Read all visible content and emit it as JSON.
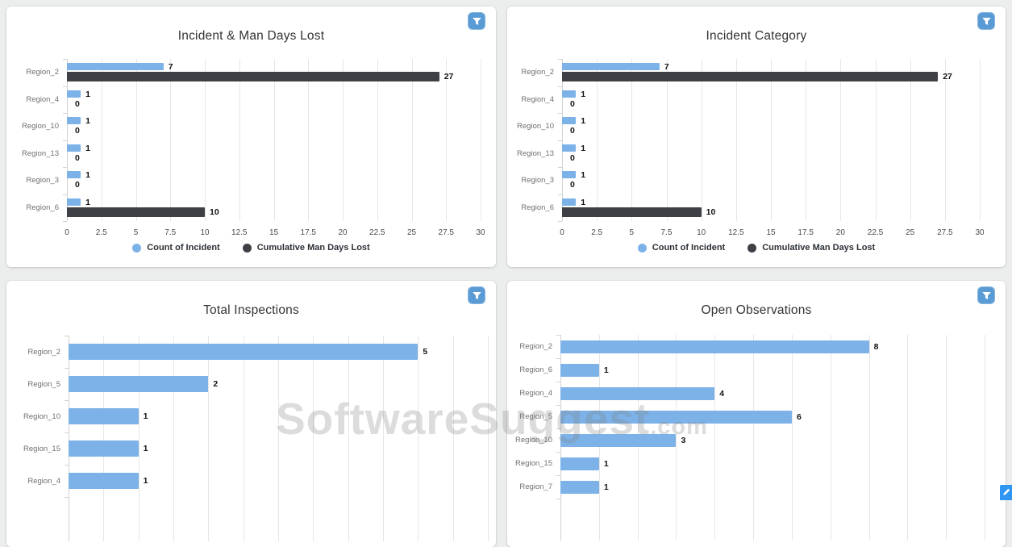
{
  "watermark": {
    "text": "SoftwareSuggest",
    "suffix": ".com"
  },
  "colors": {
    "page_background": "#eceded",
    "panel_background": "#ffffff",
    "bar_blue": "#7db2e8",
    "bar_dark": "#3e4045",
    "filter_button": "#5b9bd5",
    "edit_button": "#2f96f3",
    "gridline": "#e6e6e6"
  },
  "chart_data": [
    {
      "type": "bar",
      "orientation": "horizontal",
      "title": "Incident & Man Days Lost",
      "categories": [
        "Region_2",
        "Region_4",
        "Region_10",
        "Region_13",
        "Region_3",
        "Region_6"
      ],
      "series": [
        {
          "name": "Count of Incident",
          "color": "#7db2e8",
          "values": [
            7,
            1,
            1,
            1,
            1,
            1
          ]
        },
        {
          "name": "Cumulative Man Days Lost",
          "color": "#3e4045",
          "values": [
            27,
            0,
            0,
            0,
            0,
            10
          ]
        }
      ],
      "x_ticks": [
        "0",
        "2.5",
        "5",
        "7.5",
        "10",
        "12.5",
        "15",
        "17.5",
        "20",
        "22.5",
        "25",
        "27.5",
        "30"
      ],
      "xmax": 30,
      "grid_step": 2.5,
      "grid": true,
      "legend_position": "bottom"
    },
    {
      "type": "bar",
      "orientation": "horizontal",
      "title": "Incident Category",
      "categories": [
        "Region_2",
        "Region_4",
        "Region_10",
        "Region_13",
        "Region_3",
        "Region_6"
      ],
      "series": [
        {
          "name": "Count of Incident",
          "color": "#7db2e8",
          "values": [
            7,
            1,
            1,
            1,
            1,
            1
          ]
        },
        {
          "name": "Cumulative Man Days Lost",
          "color": "#3e4045",
          "values": [
            27,
            0,
            0,
            0,
            0,
            10
          ]
        }
      ],
      "x_ticks": [
        "0",
        "2.5",
        "5",
        "7.5",
        "10",
        "12.5",
        "15",
        "17.5",
        "20",
        "22.5",
        "25",
        "27.5",
        "30"
      ],
      "xmax": 30,
      "grid_step": 2.5,
      "grid": true,
      "legend_position": "bottom"
    },
    {
      "type": "bar",
      "orientation": "horizontal",
      "title": "Total Inspections",
      "categories": [
        "Region_2",
        "Region_5",
        "Region_10",
        "Region_15",
        "Region_4"
      ],
      "series": [
        {
          "name": "Total Inspections",
          "color": "#7db2e8",
          "values": [
            5,
            2,
            1,
            1,
            1
          ]
        }
      ],
      "x_ticks": [],
      "xmax": 6,
      "grid_step": 0.5,
      "grid": true,
      "legend_position": "none"
    },
    {
      "type": "bar",
      "orientation": "horizontal",
      "title": "Open Observations",
      "categories": [
        "Region_2",
        "Region_6",
        "Region_4",
        "Region_5",
        "Region_10",
        "Region_15",
        "Region_7"
      ],
      "series": [
        {
          "name": "Open Observations",
          "color": "#7db2e8",
          "values": [
            8,
            1,
            4,
            6,
            3,
            1,
            1
          ]
        }
      ],
      "x_ticks": [],
      "xmax": 11.5,
      "grid_step": 1,
      "grid": true,
      "legend_position": "none"
    }
  ]
}
